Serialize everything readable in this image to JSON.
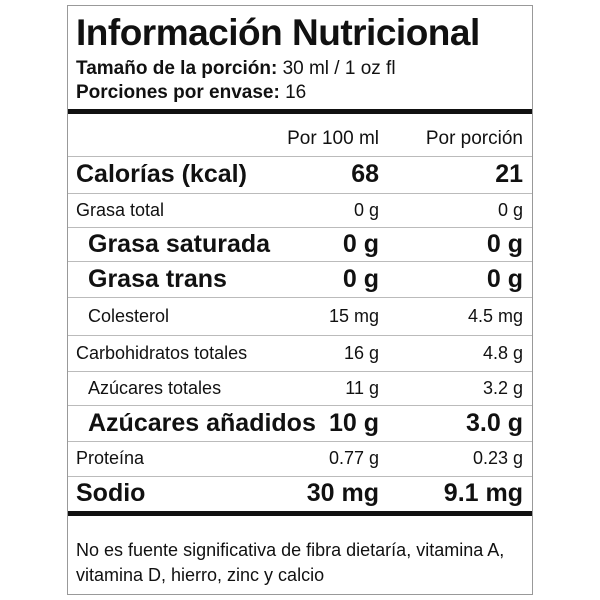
{
  "header": {
    "title": "Información Nutricional",
    "serving_size_label": "Tamaño de la porción:",
    "serving_size": "30 ml / 1 oz fl",
    "servings_label": "Porciones por envase:",
    "servings": "16"
  },
  "table": {
    "columns": [
      "Por 100 ml",
      "Por porción"
    ],
    "rows": [
      [
        "Calorías (kcal)",
        "68",
        "21"
      ],
      [
        "Grasa total",
        "0 g",
        "0 g"
      ],
      [
        "Grasa saturada",
        "0 g",
        "0 g"
      ],
      [
        "Grasa trans",
        "0 g",
        "0 g"
      ],
      [
        "Colesterol",
        "15 mg",
        "4.5 mg"
      ],
      [
        "Carbohidratos totales",
        "16 g",
        "4.8 g"
      ],
      [
        "Azúcares totales",
        "11 g",
        "3.2 g"
      ],
      [
        "Azúcares añadidos",
        "10 g",
        "3.0 g"
      ],
      [
        "Proteína",
        "0.77 g",
        "0.23 g"
      ],
      [
        "Sodio",
        "30 mg",
        "9.1 mg"
      ]
    ]
  },
  "footnote": "No es fuente significativa de fibra dietaría, vitamina A, vitamina D, hierro, zinc y calcio"
}
